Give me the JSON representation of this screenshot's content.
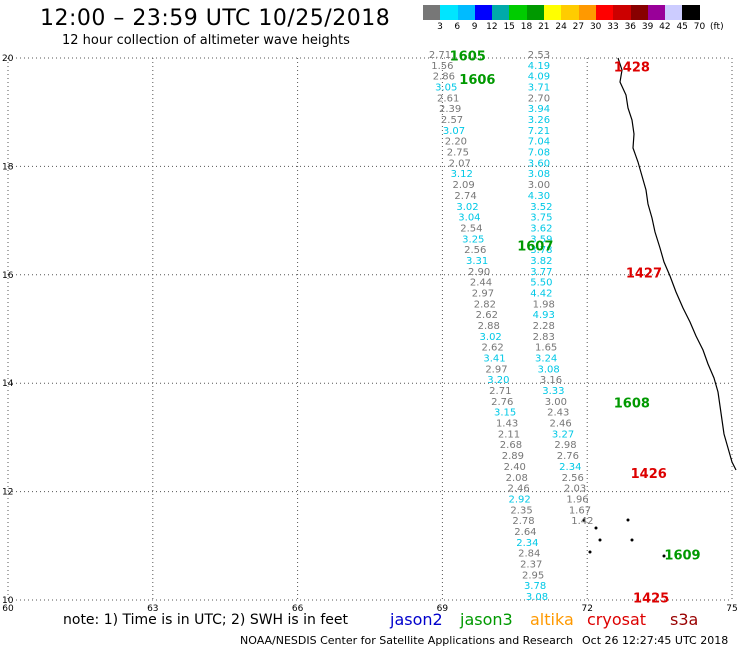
{
  "header": {
    "title": "12:00 – 23:59 UTC 10/25/2018",
    "subtitle": "12 hour collection of altimeter wave heights"
  },
  "color_scale": {
    "colors": [
      "#777777",
      "#00e5ff",
      "#00bbff",
      "#0000ff",
      "#00aaaa",
      "#00cc00",
      "#009900",
      "#ffff00",
      "#ffcc00",
      "#ff9900",
      "#ff0000",
      "#cc0000",
      "#880000",
      "#990099",
      "#ccccff",
      "#000000"
    ],
    "labels": [
      "3",
      "6",
      "9",
      "12",
      "15",
      "18",
      "21",
      "24",
      "27",
      "30",
      "33",
      "36",
      "39",
      "42",
      "45",
      "70",
      "(ft)"
    ]
  },
  "axes": {
    "x_ticks": [
      "60",
      "63",
      "66",
      "69",
      "72",
      "75"
    ],
    "y_ticks": [
      "10",
      "12",
      "14",
      "16",
      "18",
      "20"
    ],
    "x_range": [
      60,
      75
    ],
    "y_range": [
      10,
      20
    ]
  },
  "footer": {
    "note": "note: 1) Time is in UTC; 2) SWH is in feet",
    "satellites": [
      {
        "name": "jason2",
        "color": "#0000cc"
      },
      {
        "name": "jason3",
        "color": "#009900"
      },
      {
        "name": "altika",
        "color": "#ff9900"
      },
      {
        "name": "cryosat",
        "color": "#dd0000"
      },
      {
        "name": "s3a",
        "color": "#990000"
      }
    ],
    "credit": "NOAA/NESDIS Center for Satellite Applications and Research",
    "timestamp": "Oct 26 12:27:45 UTC 2018"
  },
  "pass_labels": [
    {
      "text": "1605",
      "color": "#009900",
      "lon": 69.15,
      "lat": 19.95
    },
    {
      "text": "1606",
      "color": "#009900",
      "lon": 69.35,
      "lat": 19.52
    },
    {
      "text": "1607",
      "color": "#009900",
      "lon": 70.55,
      "lat": 16.45
    },
    {
      "text": "1608",
      "color": "#009900",
      "lon": 72.55,
      "lat": 13.55
    },
    {
      "text": "1609",
      "color": "#009900",
      "lon": 73.6,
      "lat": 10.75
    },
    {
      "text": "1428",
      "color": "#dd0000",
      "lon": 72.55,
      "lat": 19.75
    },
    {
      "text": "1427",
      "color": "#dd0000",
      "lon": 72.8,
      "lat": 15.95
    },
    {
      "text": "1426",
      "color": "#dd0000",
      "lon": 72.9,
      "lat": 12.25
    },
    {
      "text": "1425",
      "color": "#dd0000",
      "lon": 72.95,
      "lat": 9.95
    }
  ],
  "track_a": [
    {
      "v": "2.71",
      "c": "#777777",
      "lon": 68.95,
      "lat": 20.0
    },
    {
      "v": "1.56",
      "c": "#777777",
      "lon": 69.0,
      "lat": 19.8
    },
    {
      "v": "2.86",
      "c": "#777777",
      "lon": 69.03,
      "lat": 19.6
    },
    {
      "v": "3.05",
      "c": "#00c8e6",
      "lon": 69.08,
      "lat": 19.4
    },
    {
      "v": "2.61",
      "c": "#777777",
      "lon": 69.12,
      "lat": 19.2
    },
    {
      "v": "2.39",
      "c": "#777777",
      "lon": 69.16,
      "lat": 19.0
    },
    {
      "v": "2.57",
      "c": "#777777",
      "lon": 69.2,
      "lat": 18.8
    },
    {
      "v": "3.07",
      "c": "#00c8e6",
      "lon": 69.24,
      "lat": 18.6
    },
    {
      "v": "2.20",
      "c": "#777777",
      "lon": 69.28,
      "lat": 18.4
    },
    {
      "v": "2.75",
      "c": "#777777",
      "lon": 69.32,
      "lat": 18.2
    },
    {
      "v": "2.07",
      "c": "#777777",
      "lon": 69.36,
      "lat": 18.0
    },
    {
      "v": "3.12",
      "c": "#00c8e6",
      "lon": 69.4,
      "lat": 17.8
    },
    {
      "v": "2.09",
      "c": "#777777",
      "lon": 69.44,
      "lat": 17.6
    },
    {
      "v": "2.74",
      "c": "#777777",
      "lon": 69.48,
      "lat": 17.4
    },
    {
      "v": "3.02",
      "c": "#00c8e6",
      "lon": 69.52,
      "lat": 17.2
    },
    {
      "v": "3.04",
      "c": "#00c8e6",
      "lon": 69.56,
      "lat": 17.0
    },
    {
      "v": "2.54",
      "c": "#777777",
      "lon": 69.6,
      "lat": 16.8
    },
    {
      "v": "3.25",
      "c": "#00c8e6",
      "lon": 69.64,
      "lat": 16.6
    },
    {
      "v": "2.56",
      "c": "#777777",
      "lon": 69.68,
      "lat": 16.4
    },
    {
      "v": "3.31",
      "c": "#00c8e6",
      "lon": 69.72,
      "lat": 16.2
    },
    {
      "v": "2.90",
      "c": "#777777",
      "lon": 69.76,
      "lat": 16.0
    },
    {
      "v": "2.44",
      "c": "#777777",
      "lon": 69.8,
      "lat": 15.8
    },
    {
      "v": "2.97",
      "c": "#777777",
      "lon": 69.84,
      "lat": 15.6
    },
    {
      "v": "2.82",
      "c": "#777777",
      "lon": 69.88,
      "lat": 15.4
    },
    {
      "v": "2.62",
      "c": "#777777",
      "lon": 69.92,
      "lat": 15.2
    },
    {
      "v": "2.88",
      "c": "#777777",
      "lon": 69.96,
      "lat": 15.0
    },
    {
      "v": "3.02",
      "c": "#00c8e6",
      "lon": 70.0,
      "lat": 14.8
    },
    {
      "v": "2.62",
      "c": "#777777",
      "lon": 70.04,
      "lat": 14.6
    },
    {
      "v": "3.41",
      "c": "#00c8e6",
      "lon": 70.08,
      "lat": 14.4
    },
    {
      "v": "2.97",
      "c": "#777777",
      "lon": 70.12,
      "lat": 14.2
    },
    {
      "v": "3.20",
      "c": "#00c8e6",
      "lon": 70.16,
      "lat": 14.0
    },
    {
      "v": "2.71",
      "c": "#777777",
      "lon": 70.2,
      "lat": 13.8
    },
    {
      "v": "2.76",
      "c": "#777777",
      "lon": 70.24,
      "lat": 13.6
    },
    {
      "v": "3.15",
      "c": "#00c8e6",
      "lon": 70.3,
      "lat": 13.4
    },
    {
      "v": "1.43",
      "c": "#777777",
      "lon": 70.34,
      "lat": 13.2
    },
    {
      "v": "2.11",
      "c": "#777777",
      "lon": 70.38,
      "lat": 13.0
    },
    {
      "v": "2.68",
      "c": "#777777",
      "lon": 70.42,
      "lat": 12.8
    },
    {
      "v": "2.89",
      "c": "#777777",
      "lon": 70.46,
      "lat": 12.6
    },
    {
      "v": "2.40",
      "c": "#777777",
      "lon": 70.5,
      "lat": 12.4
    },
    {
      "v": "2.08",
      "c": "#777777",
      "lon": 70.54,
      "lat": 12.2
    },
    {
      "v": "2.46",
      "c": "#777777",
      "lon": 70.58,
      "lat": 12.0
    },
    {
      "v": "2.92",
      "c": "#00c8e6",
      "lon": 70.6,
      "lat": 11.8
    },
    {
      "v": "2.35",
      "c": "#777777",
      "lon": 70.64,
      "lat": 11.6
    },
    {
      "v": "2.78",
      "c": "#777777",
      "lon": 70.68,
      "lat": 11.4
    },
    {
      "v": "2.64",
      "c": "#777777",
      "lon": 70.72,
      "lat": 11.2
    },
    {
      "v": "2.34",
      "c": "#00c8e6",
      "lon": 70.76,
      "lat": 11.0
    },
    {
      "v": "2.84",
      "c": "#777777",
      "lon": 70.8,
      "lat": 10.8
    },
    {
      "v": "2.37",
      "c": "#777777",
      "lon": 70.84,
      "lat": 10.6
    },
    {
      "v": "2.95",
      "c": "#777777",
      "lon": 70.88,
      "lat": 10.4
    },
    {
      "v": "3.78",
      "c": "#00c8e6",
      "lon": 70.92,
      "lat": 10.2
    },
    {
      "v": "3.08",
      "c": "#00c8e6",
      "lon": 70.96,
      "lat": 10.0
    }
  ],
  "track_b": [
    {
      "v": "2.53",
      "c": "#777777",
      "lon": 71.0,
      "lat": 20.0
    },
    {
      "v": "4.19",
      "c": "#00c8e6",
      "lon": 71.0,
      "lat": 19.8
    },
    {
      "v": "4.09",
      "c": "#00c8e6",
      "lon": 71.0,
      "lat": 19.6
    },
    {
      "v": "3.71",
      "c": "#00c8e6",
      "lon": 71.0,
      "lat": 19.4
    },
    {
      "v": "2.70",
      "c": "#777777",
      "lon": 71.0,
      "lat": 19.2
    },
    {
      "v": "3.94",
      "c": "#00c8e6",
      "lon": 71.0,
      "lat": 19.0
    },
    {
      "v": "3.26",
      "c": "#00c8e6",
      "lon": 71.0,
      "lat": 18.8
    },
    {
      "v": "7.21",
      "c": "#00c8e6",
      "lon": 71.0,
      "lat": 18.6
    },
    {
      "v": "7.04",
      "c": "#00c8e6",
      "lon": 71.0,
      "lat": 18.4
    },
    {
      "v": "7.08",
      "c": "#00c8e6",
      "lon": 71.0,
      "lat": 18.2
    },
    {
      "v": "3.60",
      "c": "#00c8e6",
      "lon": 71.0,
      "lat": 18.0
    },
    {
      "v": "3.08",
      "c": "#00c8e6",
      "lon": 71.0,
      "lat": 17.8
    },
    {
      "v": "3.00",
      "c": "#777777",
      "lon": 71.0,
      "lat": 17.6
    },
    {
      "v": "4.30",
      "c": "#00c8e6",
      "lon": 71.0,
      "lat": 17.4
    },
    {
      "v": "3.52",
      "c": "#00c8e6",
      "lon": 71.05,
      "lat": 17.2
    },
    {
      "v": "3.75",
      "c": "#00c8e6",
      "lon": 71.05,
      "lat": 17.0
    },
    {
      "v": "3.62",
      "c": "#00c8e6",
      "lon": 71.05,
      "lat": 16.8
    },
    {
      "v": "3.59",
      "c": "#00c8e6",
      "lon": 71.05,
      "lat": 16.6
    },
    {
      "v": "3.78",
      "c": "#00c8e6",
      "lon": 71.05,
      "lat": 16.4
    },
    {
      "v": "3.82",
      "c": "#00c8e6",
      "lon": 71.05,
      "lat": 16.2
    },
    {
      "v": "3.77",
      "c": "#00c8e6",
      "lon": 71.05,
      "lat": 16.0
    },
    {
      "v": "5.50",
      "c": "#00c8e6",
      "lon": 71.05,
      "lat": 15.8
    },
    {
      "v": "4.42",
      "c": "#00c8e6",
      "lon": 71.05,
      "lat": 15.6
    },
    {
      "v": "1.98",
      "c": "#777777",
      "lon": 71.1,
      "lat": 15.4
    },
    {
      "v": "4.93",
      "c": "#00c8e6",
      "lon": 71.1,
      "lat": 15.2
    },
    {
      "v": "2.28",
      "c": "#777777",
      "lon": 71.1,
      "lat": 15.0
    },
    {
      "v": "2.83",
      "c": "#777777",
      "lon": 71.1,
      "lat": 14.8
    },
    {
      "v": "1.65",
      "c": "#777777",
      "lon": 71.15,
      "lat": 14.6
    },
    {
      "v": "3.24",
      "c": "#00c8e6",
      "lon": 71.15,
      "lat": 14.4
    },
    {
      "v": "3.08",
      "c": "#00c8e6",
      "lon": 71.2,
      "lat": 14.2
    },
    {
      "v": "3.16",
      "c": "#777777",
      "lon": 71.25,
      "lat": 14.0
    },
    {
      "v": "3.33",
      "c": "#00c8e6",
      "lon": 71.3,
      "lat": 13.8
    },
    {
      "v": "3.00",
      "c": "#777777",
      "lon": 71.35,
      "lat": 13.6
    },
    {
      "v": "2.43",
      "c": "#777777",
      "lon": 71.4,
      "lat": 13.4
    },
    {
      "v": "2.46",
      "c": "#777777",
      "lon": 71.45,
      "lat": 13.2
    },
    {
      "v": "3.27",
      "c": "#00c8e6",
      "lon": 71.5,
      "lat": 13.0
    },
    {
      "v": "2.98",
      "c": "#777777",
      "lon": 71.55,
      "lat": 12.8
    },
    {
      "v": "2.76",
      "c": "#777777",
      "lon": 71.6,
      "lat": 12.6
    },
    {
      "v": "2.34",
      "c": "#00c8e6",
      "lon": 71.65,
      "lat": 12.4
    },
    {
      "v": "2.56",
      "c": "#777777",
      "lon": 71.7,
      "lat": 12.2
    },
    {
      "v": "2.03",
      "c": "#777777",
      "lon": 71.75,
      "lat": 12.0
    },
    {
      "v": "1.96",
      "c": "#777777",
      "lon": 71.8,
      "lat": 11.8
    },
    {
      "v": "1.67",
      "c": "#777777",
      "lon": 71.85,
      "lat": 11.6
    },
    {
      "v": "1.42",
      "c": "#777777",
      "lon": 71.9,
      "lat": 11.4
    }
  ]
}
